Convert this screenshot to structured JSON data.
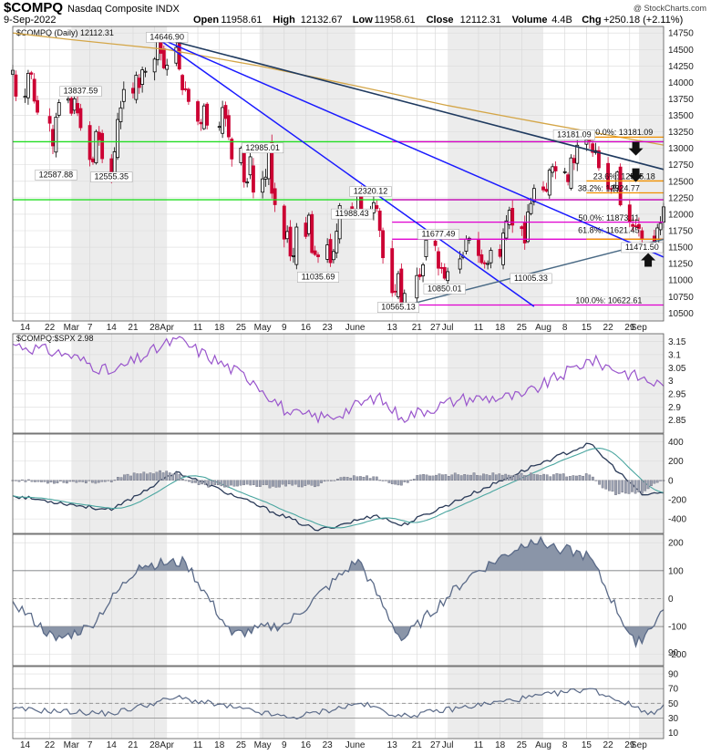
{
  "header": {
    "symbol": "$COMPQ",
    "name": "Nasdaq Composite INDX",
    "watermark": "@ StockCharts.com",
    "date": "9-Sep-2022",
    "open_label": "Open",
    "open": "11958.61",
    "high_label": "High",
    "high": "12132.67",
    "low_label": "Low",
    "low": "11958.61",
    "close_label": "Close",
    "close": "12112.31",
    "volume_label": "Volume",
    "volume": "4.4B",
    "chg_label": "Chg",
    "chg": "+250.18 (+2.11%)",
    "panel_title": "$COMPQ (Daily) 12112.31",
    "ratio_title": "$COMPQ:$SPX 2.98"
  },
  "colors": {
    "up": "#000000",
    "down": "#cc0033",
    "ma": "#d4a648",
    "green": "#22dd22",
    "magenta": "#e000d0",
    "orange": "#f09000",
    "blue": "#1a1aff",
    "navy": "#1f3a5f",
    "steel": "#4a6a85",
    "purple": "#9955cc",
    "osc": "#5a6a88",
    "fill": "#8a95a8"
  },
  "chart_data": [
    {
      "type": "candlestick",
      "price_ticks": [
        10500,
        10750,
        11000,
        11250,
        11500,
        11750,
        12000,
        12250,
        12500,
        12750,
        13000,
        13250,
        13500,
        13750,
        14000,
        14250,
        14500,
        14750
      ],
      "date_labels": [
        "14",
        "22",
        "Mar",
        "7",
        "14",
        "21",
        "28",
        "Apr",
        "11",
        "18",
        "25",
        "May",
        "9",
        "16",
        "23",
        "June",
        "13",
        "21",
        "27",
        "Jul",
        "11",
        "18",
        "25",
        "Aug",
        "8",
        "15",
        "22",
        "29",
        "Sep"
      ],
      "annotations": [
        "13837.59",
        "12587.88",
        "12555.35",
        "14646.90",
        "12985.01",
        "11988.43",
        "12320.12",
        "11035.69",
        "11677.49",
        "11005.33",
        "10850.01",
        "10565.13",
        "13181.09",
        "11471.50"
      ],
      "fib_labels": [
        "0.0%: 13181.09",
        "23.6%: 12505.18",
        "38.2%: 12324.77",
        "50.0%: 11873.11",
        "61.8%: 11621.45",
        "100.0%: 10622.61"
      ],
      "close_path": [
        [
          "2022-02-10",
          14185
        ],
        [
          "2022-02-11",
          13791
        ],
        [
          "2022-02-14",
          13790
        ],
        [
          "2022-02-15",
          14139
        ],
        [
          "2022-02-16",
          14124
        ],
        [
          "2022-02-17",
          13717
        ],
        [
          "2022-02-18",
          13548
        ],
        [
          "2022-02-22",
          13381
        ],
        [
          "2022-02-23",
          13037
        ],
        [
          "2022-02-24",
          13473
        ],
        [
          "2022-02-25",
          13694
        ],
        [
          "2022-02-28",
          13751
        ],
        [
          "2022-03-01",
          13532
        ],
        [
          "2022-03-02",
          13752
        ],
        [
          "2022-03-03",
          13537
        ],
        [
          "2022-03-04",
          13313
        ],
        [
          "2022-03-07",
          12830
        ],
        [
          "2022-03-08",
          12795
        ],
        [
          "2022-03-09",
          13255
        ],
        [
          "2022-03-10",
          13130
        ],
        [
          "2022-03-11",
          12843
        ],
        [
          "2022-03-14",
          12581
        ],
        [
          "2022-03-15",
          12949
        ],
        [
          "2022-03-16",
          13437
        ],
        [
          "2022-03-17",
          13614
        ],
        [
          "2022-03-18",
          13893
        ],
        [
          "2022-03-21",
          13838
        ],
        [
          "2022-03-22",
          14109
        ],
        [
          "2022-03-23",
          13923
        ],
        [
          "2022-03-24",
          14191
        ],
        [
          "2022-03-25",
          14169
        ],
        [
          "2022-03-28",
          14354
        ],
        [
          "2022-03-29",
          14620
        ],
        [
          "2022-03-30",
          14442
        ],
        [
          "2022-03-31",
          14221
        ],
        [
          "2022-04-01",
          14261
        ],
        [
          "2022-04-04",
          14532
        ],
        [
          "2022-04-05",
          14204
        ],
        [
          "2022-04-06",
          13888
        ],
        [
          "2022-04-07",
          13897
        ],
        [
          "2022-04-08",
          13711
        ],
        [
          "2022-04-11",
          13411
        ],
        [
          "2022-04-12",
          13372
        ],
        [
          "2022-04-13",
          13644
        ],
        [
          "2022-04-14",
          13351
        ],
        [
          "2022-04-18",
          13332
        ],
        [
          "2022-04-19",
          13619
        ],
        [
          "2022-04-20",
          13453
        ],
        [
          "2022-04-21",
          13174
        ],
        [
          "2022-04-22",
          12839
        ],
        [
          "2022-04-25",
          13004
        ],
        [
          "2022-04-26",
          12490
        ],
        [
          "2022-04-27",
          12488
        ],
        [
          "2022-04-28",
          12872
        ],
        [
          "2022-04-29",
          12335
        ],
        [
          "2022-05-02",
          12536
        ],
        [
          "2022-05-03",
          12563
        ],
        [
          "2022-05-04",
          12965
        ],
        [
          "2022-05-05",
          12318
        ],
        [
          "2022-05-06",
          12145
        ],
        [
          "2022-05-09",
          11623
        ],
        [
          "2022-05-10",
          11738
        ],
        [
          "2022-05-11",
          11365
        ],
        [
          "2022-05-12",
          11371
        ],
        [
          "2022-05-13",
          11805
        ],
        [
          "2022-05-16",
          11663
        ],
        [
          "2022-05-17",
          11985
        ],
        [
          "2022-05-18",
          11418
        ],
        [
          "2022-05-19",
          11389
        ],
        [
          "2022-05-20",
          11355
        ],
        [
          "2022-05-23",
          11535
        ],
        [
          "2022-05-24",
          11264
        ],
        [
          "2022-05-25",
          11434
        ],
        [
          "2022-05-26",
          11741
        ],
        [
          "2022-05-27",
          12131
        ],
        [
          "2022-05-31",
          12081
        ],
        [
          "2022-06-01",
          11994
        ],
        [
          "2022-06-02",
          12317
        ],
        [
          "2022-06-03",
          12013
        ],
        [
          "2022-06-06",
          12062
        ],
        [
          "2022-06-07",
          12175
        ],
        [
          "2022-06-08",
          12086
        ],
        [
          "2022-06-09",
          11754
        ],
        [
          "2022-06-10",
          11340
        ],
        [
          "2022-06-13",
          10809
        ],
        [
          "2022-06-14",
          10829
        ],
        [
          "2022-06-15",
          11099
        ],
        [
          "2022-06-16",
          10646
        ],
        [
          "2022-06-17",
          10798
        ],
        [
          "2022-06-21",
          11069
        ],
        [
          "2022-06-22",
          11053
        ],
        [
          "2022-06-23",
          11232
        ],
        [
          "2022-06-24",
          11608
        ],
        [
          "2022-06-27",
          11525
        ],
        [
          "2022-06-28",
          11181
        ],
        [
          "2022-06-29",
          11178
        ],
        [
          "2022-06-30",
          11029
        ],
        [
          "2022-07-01",
          11128
        ],
        [
          "2022-07-05",
          11322
        ],
        [
          "2022-07-06",
          11362
        ],
        [
          "2022-07-07",
          11621
        ],
        [
          "2022-07-08",
          11635
        ],
        [
          "2022-07-11",
          11373
        ],
        [
          "2022-07-12",
          11265
        ],
        [
          "2022-07-13",
          11248
        ],
        [
          "2022-07-14",
          11252
        ],
        [
          "2022-07-15",
          11452
        ],
        [
          "2022-07-18",
          11360
        ],
        [
          "2022-07-19",
          11713
        ],
        [
          "2022-07-20",
          11898
        ],
        [
          "2022-07-21",
          12060
        ],
        [
          "2022-07-22",
          11834
        ],
        [
          "2022-07-25",
          11782
        ],
        [
          "2022-07-26",
          11563
        ],
        [
          "2022-07-27",
          12032
        ],
        [
          "2022-07-28",
          12163
        ],
        [
          "2022-07-29",
          12391
        ],
        [
          "2022-08-01",
          12369
        ],
        [
          "2022-08-02",
          12349
        ],
        [
          "2022-08-03",
          12668
        ],
        [
          "2022-08-04",
          12721
        ],
        [
          "2022-08-05",
          12657
        ],
        [
          "2022-08-08",
          12645
        ],
        [
          "2022-08-09",
          12493
        ],
        [
          "2022-08-10",
          12855
        ],
        [
          "2022-08-11",
          12780
        ],
        [
          "2022-08-12",
          13047
        ],
        [
          "2022-08-15",
          13128
        ],
        [
          "2022-08-16",
          13103
        ],
        [
          "2022-08-17",
          12938
        ],
        [
          "2022-08-18",
          12966
        ],
        [
          "2022-08-19",
          12705
        ],
        [
          "2022-08-22",
          12381
        ],
        [
          "2022-08-23",
          12381
        ],
        [
          "2022-08-24",
          12431
        ],
        [
          "2022-08-25",
          12640
        ],
        [
          "2022-08-26",
          12142
        ],
        [
          "2022-08-29",
          11883
        ],
        [
          "2022-08-30",
          11816
        ],
        [
          "2022-08-31",
          11816
        ],
        [
          "2022-09-01",
          11785
        ],
        [
          "2022-09-02",
          11631
        ],
        [
          "2022-09-06",
          11544
        ],
        [
          "2022-09-07",
          11792
        ],
        [
          "2022-09-08",
          11862
        ],
        [
          "2022-09-09",
          12112
        ]
      ]
    },
    {
      "type": "line",
      "name": "$COMPQ:$SPX",
      "ticks": [
        2.85,
        2.9,
        2.95,
        3.0,
        3.05,
        3.1,
        3.15
      ],
      "ylim": [
        2.8,
        3.18
      ],
      "key_points": [
        [
          "2022-02-10",
          3.14
        ],
        [
          "2022-02-28",
          3.1
        ],
        [
          "2022-03-14",
          3.03
        ],
        [
          "2022-04-04",
          3.16
        ],
        [
          "2022-04-29",
          3.0
        ],
        [
          "2022-05-11",
          2.87
        ],
        [
          "2022-05-24",
          2.86
        ],
        [
          "2022-06-08",
          2.94
        ],
        [
          "2022-06-16",
          2.86
        ],
        [
          "2022-07-05",
          2.93
        ],
        [
          "2022-07-25",
          2.94
        ],
        [
          "2022-08-16",
          3.08
        ],
        [
          "2022-09-09",
          2.98
        ]
      ]
    },
    {
      "type": "bar+line",
      "name": "MACD",
      "ticks": [
        -400,
        -200,
        0,
        200,
        400
      ],
      "ylim": [
        -550,
        480
      ],
      "key_points": [
        [
          "2022-02-10",
          -160
        ],
        [
          "2022-03-14",
          -310
        ],
        [
          "2022-04-04",
          90
        ],
        [
          "2022-05-20",
          -520
        ],
        [
          "2022-06-08",
          -360
        ],
        [
          "2022-06-16",
          -470
        ],
        [
          "2022-07-29",
          150
        ],
        [
          "2022-08-16",
          380
        ],
        [
          "2022-09-02",
          -150
        ],
        [
          "2022-09-09",
          -130
        ]
      ]
    },
    {
      "type": "line",
      "name": "CCI",
      "ticks": [
        -200,
        -100,
        0,
        100,
        200
      ],
      "ylim": [
        -240,
        230
      ],
      "key_points": [
        [
          "2022-02-10",
          -10
        ],
        [
          "2022-02-24",
          -150
        ],
        [
          "2022-03-07",
          -100
        ],
        [
          "2022-03-23",
          120
        ],
        [
          "2022-04-07",
          130
        ],
        [
          "2022-04-22",
          -130
        ],
        [
          "2022-05-10",
          -90
        ],
        [
          "2022-06-02",
          140
        ],
        [
          "2022-06-16",
          -150
        ],
        [
          "2022-07-08",
          80
        ],
        [
          "2022-07-28",
          210
        ],
        [
          "2022-08-16",
          150
        ],
        [
          "2022-08-31",
          -170
        ],
        [
          "2022-09-09",
          -40
        ]
      ]
    },
    {
      "type": "line",
      "name": "RSI",
      "ticks": [
        10,
        30,
        50,
        70,
        90
      ],
      "ylim": [
        2,
        100
      ],
      "key_points": [
        [
          "2022-02-10",
          42
        ],
        [
          "2022-03-14",
          36
        ],
        [
          "2022-04-04",
          58
        ],
        [
          "2022-05-11",
          30
        ],
        [
          "2022-06-03",
          50
        ],
        [
          "2022-06-16",
          32
        ],
        [
          "2022-08-16",
          70
        ],
        [
          "2022-09-06",
          35
        ],
        [
          "2022-09-09",
          48
        ]
      ]
    }
  ]
}
